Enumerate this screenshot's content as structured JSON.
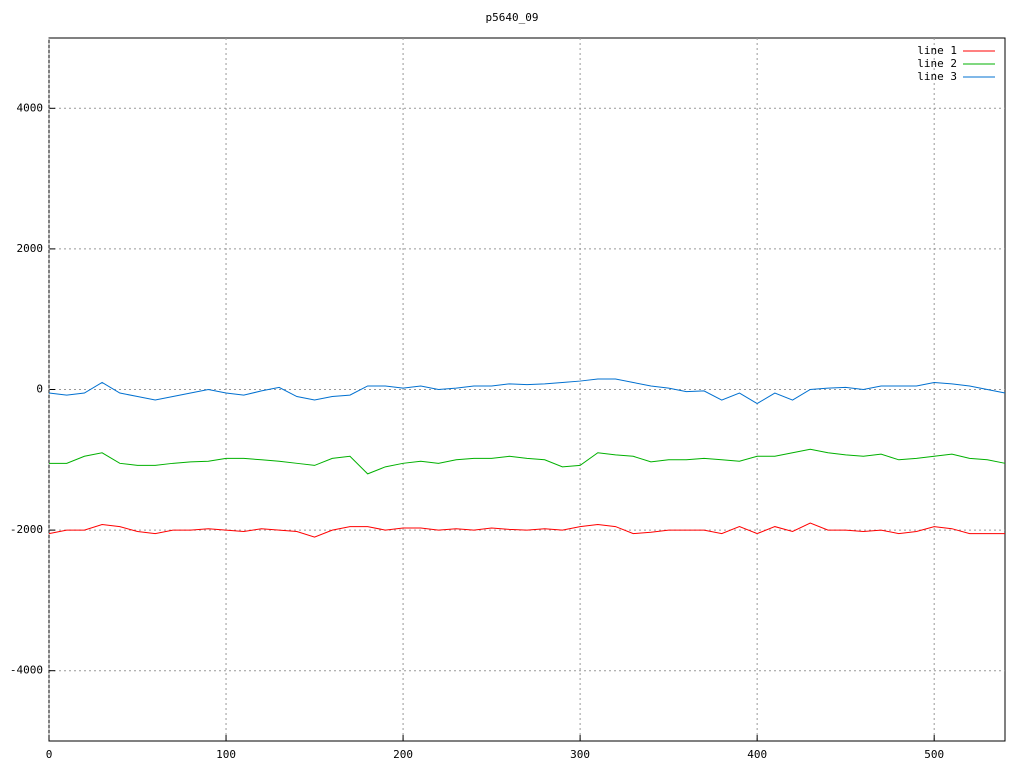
{
  "chart_data": {
    "type": "line",
    "title": "p5640_09",
    "x": [
      0,
      10,
      20,
      30,
      40,
      50,
      60,
      70,
      80,
      90,
      100,
      110,
      120,
      130,
      140,
      150,
      160,
      170,
      180,
      190,
      200,
      210,
      220,
      230,
      240,
      250,
      260,
      270,
      280,
      290,
      300,
      310,
      320,
      330,
      340,
      350,
      360,
      370,
      380,
      390,
      400,
      410,
      420,
      430,
      440,
      450,
      460,
      470,
      480,
      490,
      500,
      510,
      520,
      530,
      540
    ],
    "series": [
      {
        "name": "line 1",
        "color": "#ff0000",
        "values": [
          -2050,
          -2000,
          -2000,
          -1920,
          -1950,
          -2020,
          -2050,
          -2000,
          -2000,
          -1980,
          -2000,
          -2020,
          -1980,
          -2000,
          -2020,
          -2100,
          -2000,
          -1950,
          -1950,
          -2000,
          -1970,
          -1970,
          -2000,
          -1980,
          -2000,
          -1970,
          -1990,
          -2000,
          -1980,
          -2000,
          -1950,
          -1920,
          -1950,
          -2050,
          -2030,
          -2000,
          -2000,
          -2000,
          -2050,
          -1950,
          -2050,
          -1950,
          -2020,
          -1900,
          -2000,
          -2000,
          -2020,
          -2000,
          -2050,
          -2020,
          -1950,
          -1980,
          -2050,
          -2050,
          -2050
        ]
      },
      {
        "name": "line 2",
        "color": "#00b000",
        "values": [
          -1050,
          -1050,
          -950,
          -900,
          -1050,
          -1080,
          -1080,
          -1050,
          -1030,
          -1020,
          -980,
          -980,
          -1000,
          -1020,
          -1050,
          -1080,
          -980,
          -950,
          -1200,
          -1100,
          -1050,
          -1020,
          -1050,
          -1000,
          -980,
          -980,
          -950,
          -980,
          -1000,
          -1100,
          -1080,
          -900,
          -930,
          -950,
          -1030,
          -1000,
          -1000,
          -980,
          -1000,
          -1020,
          -950,
          -950,
          -900,
          -850,
          -900,
          -930,
          -950,
          -920,
          -1000,
          -980,
          -950,
          -920,
          -980,
          -1000,
          -1050
        ]
      },
      {
        "name": "line 3",
        "color": "#0070d0",
        "values": [
          -50,
          -80,
          -50,
          100,
          -50,
          -100,
          -150,
          -100,
          -50,
          0,
          -50,
          -80,
          -20,
          30,
          -100,
          -150,
          -100,
          -80,
          50,
          50,
          20,
          50,
          0,
          20,
          50,
          50,
          80,
          70,
          80,
          100,
          120,
          150,
          150,
          100,
          50,
          20,
          -30,
          -20,
          -150,
          -50,
          -200,
          -50,
          -150,
          0,
          20,
          30,
          0,
          50,
          50,
          50,
          100,
          80,
          50,
          0,
          -50
        ]
      }
    ],
    "xlim": [
      0,
      540
    ],
    "ylim": [
      -5000,
      5000
    ],
    "xticks": [
      0,
      100,
      200,
      300,
      400,
      500
    ],
    "yticks": [
      -4000,
      -2000,
      0,
      2000,
      4000
    ],
    "grid": true,
    "legend": "top-right"
  }
}
